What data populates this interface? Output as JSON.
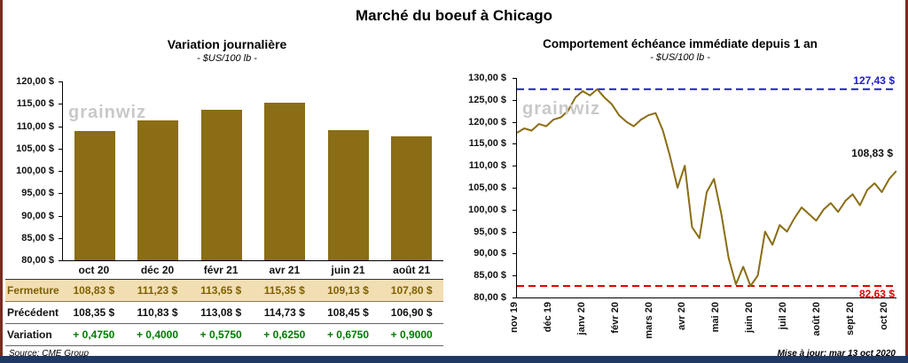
{
  "page": {
    "title": "Marché du boeuf à Chicago",
    "watermark": "grainwiz",
    "source": "Source: CME Group",
    "updated": "Mise à jour: mar 13 oct 2020"
  },
  "colors": {
    "gold": "#8a6d15",
    "highlight_row": "#f2deb3",
    "gold_text": "#7f6000",
    "positive": "#007a00",
    "max_blue": "#2020c8",
    "min_red": "#e60000",
    "accent_bottom": "#1f3864",
    "side_border": "#7a2b20",
    "watermark": "#c9c9c9"
  },
  "chart_data": [
    {
      "type": "bar",
      "title": "Variation journalière",
      "subtitle": "- $US/100 lb -",
      "categories": [
        "oct 20",
        "déc 20",
        "févr 21",
        "avr 21",
        "juin 21",
        "août 21"
      ],
      "values": [
        108.83,
        111.23,
        113.65,
        115.35,
        109.13,
        107.8
      ],
      "ylim": [
        80,
        120
      ],
      "yticks": [
        "120,00 $",
        "115,00 $",
        "110,00 $",
        "105,00 $",
        "100,00 $",
        "95,00 $",
        "90,00 $",
        "85,00 $",
        "80,00 $"
      ],
      "bar_color": "#8a6d15",
      "grid": false,
      "legend": "none"
    },
    {
      "type": "line",
      "title": "Comportement échéance immédiate depuis 1 an",
      "subtitle": "- $US/100 lb -",
      "x_labels": [
        "nov 19",
        "déc 19",
        "janv 20",
        "févr 20",
        "mars 20",
        "avr 20",
        "mai 20",
        "juin 20",
        "juil 20",
        "août 20",
        "sept 20",
        "oct 20"
      ],
      "ylim": [
        80,
        130
      ],
      "yticks": [
        "130,00 $",
        "125,00 $",
        "120,00 $",
        "115,00 $",
        "110,00 $",
        "105,00 $",
        "100,00 $",
        "95,00 $",
        "90,00 $",
        "85,00 $",
        "80,00 $"
      ],
      "line_color": "#8a6d15",
      "grid": false,
      "legend": "none",
      "max_line": {
        "value": 127.43,
        "label": "127,43 $",
        "color": "#2020c8"
      },
      "min_line": {
        "value": 82.63,
        "label": "82,63 $",
        "color": "#e60000"
      },
      "last_label": "108,83 $",
      "values": [
        117.5,
        118.5,
        118.0,
        119.5,
        119.0,
        120.5,
        121.0,
        122.5,
        125.5,
        127.0,
        126.0,
        127.43,
        125.5,
        124.0,
        121.5,
        120.0,
        119.0,
        120.5,
        121.5,
        122.0,
        118.0,
        112.0,
        105.0,
        110.0,
        96.0,
        93.5,
        104.0,
        107.0,
        99.0,
        89.0,
        83.0,
        87.0,
        82.63,
        85.0,
        95.0,
        92.0,
        96.5,
        95.0,
        98.0,
        100.5,
        99.0,
        97.5,
        100.0,
        101.5,
        99.5,
        102.0,
        103.5,
        101.0,
        104.5,
        106.0,
        104.0,
        107.0,
        108.83
      ]
    }
  ],
  "table": {
    "rows": [
      {
        "label": "Fermeture",
        "values": [
          "108,83 $",
          "111,23 $",
          "113,65 $",
          "115,35 $",
          "109,13 $",
          "107,80 $"
        ]
      },
      {
        "label": "Précédent",
        "values": [
          "108,35 $",
          "110,83 $",
          "113,08 $",
          "114,73 $",
          "108,45 $",
          "106,90 $"
        ]
      },
      {
        "label": "Variation",
        "values": [
          "+ 0,4750",
          "+ 0,4000",
          "+ 0,5750",
          "+ 0,6250",
          "+ 0,6750",
          "+ 0,9000"
        ]
      }
    ]
  }
}
